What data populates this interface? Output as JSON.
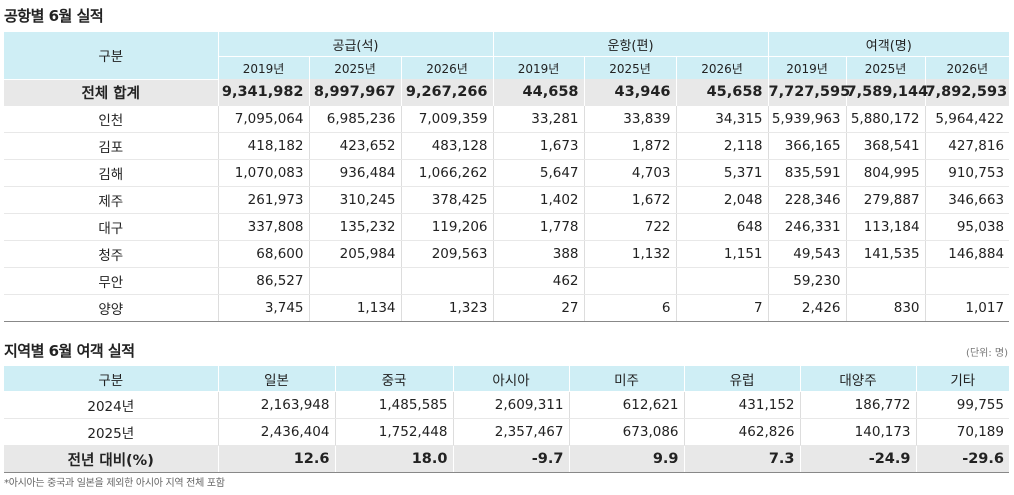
{
  "t1": {
    "title": "공항별 6월 실적",
    "header": {
      "rowhead": "구분",
      "groups": [
        "공급(석)",
        "운항(편)",
        "여객(명)"
      ],
      "years": [
        "2019년",
        "2025년",
        "2026년",
        "2019년",
        "2025년",
        "2026년",
        "2019년",
        "2025년",
        "2026년"
      ]
    },
    "rows": [
      {
        "label": "전체 합계",
        "cells": [
          "9,341,982",
          "8,997,967",
          "9,267,266",
          "44,658",
          "43,946",
          "45,658",
          "7,727,595",
          "7,589,144",
          "7,892,593"
        ]
      },
      {
        "label": "인천",
        "cells": [
          "7,095,064",
          "6,985,236",
          "7,009,359",
          "33,281",
          "33,839",
          "34,315",
          "5,939,963",
          "5,880,172",
          "5,964,422"
        ]
      },
      {
        "label": "김포",
        "cells": [
          "418,182",
          "423,652",
          "483,128",
          "1,673",
          "1,872",
          "2,118",
          "366,165",
          "368,541",
          "427,816"
        ]
      },
      {
        "label": "김해",
        "cells": [
          "1,070,083",
          "936,484",
          "1,066,262",
          "5,647",
          "4,703",
          "5,371",
          "835,591",
          "804,995",
          "910,753"
        ]
      },
      {
        "label": "제주",
        "cells": [
          "261,973",
          "310,245",
          "378,425",
          "1,402",
          "1,672",
          "2,048",
          "228,346",
          "279,887",
          "346,663"
        ]
      },
      {
        "label": "대구",
        "cells": [
          "337,808",
          "135,232",
          "119,206",
          "1,778",
          "722",
          "648",
          "246,331",
          "113,184",
          "95,038"
        ]
      },
      {
        "label": "청주",
        "cells": [
          "68,600",
          "205,984",
          "209,563",
          "388",
          "1,132",
          "1,151",
          "49,543",
          "141,535",
          "146,884"
        ]
      },
      {
        "label": "무안",
        "cells": [
          "86,527",
          "",
          "",
          "462",
          "",
          "",
          "59,230",
          "",
          ""
        ]
      },
      {
        "label": "양양",
        "cells": [
          "3,745",
          "1,134",
          "1,323",
          "27",
          "6",
          "7",
          "2,426",
          "830",
          "1,017"
        ]
      }
    ]
  },
  "t2": {
    "title": "지역별 6월 여객 실적",
    "unit": "(단위: 명)",
    "header": [
      "구분",
      "일본",
      "중국",
      "아시아",
      "미주",
      "유럽",
      "대양주",
      "기타"
    ],
    "rows": [
      {
        "label": "2024년",
        "cells": [
          "2,163,948",
          "1,485,585",
          "2,609,311",
          "612,621",
          "431,152",
          "186,772",
          "99,755"
        ]
      },
      {
        "label": "2025년",
        "cells": [
          "2,436,404",
          "1,752,448",
          "2,357,467",
          "673,086",
          "462,826",
          "140,173",
          "70,189"
        ]
      },
      {
        "label": "전년 대비(%)",
        "cells": [
          "12.6",
          "18.0",
          "-9.7",
          "9.9",
          "7.3",
          "-24.9",
          "-29.6"
        ]
      }
    ]
  },
  "footnote": "*아시아는 중국과 일본을 제외한 아시아 지역 전체 포함"
}
